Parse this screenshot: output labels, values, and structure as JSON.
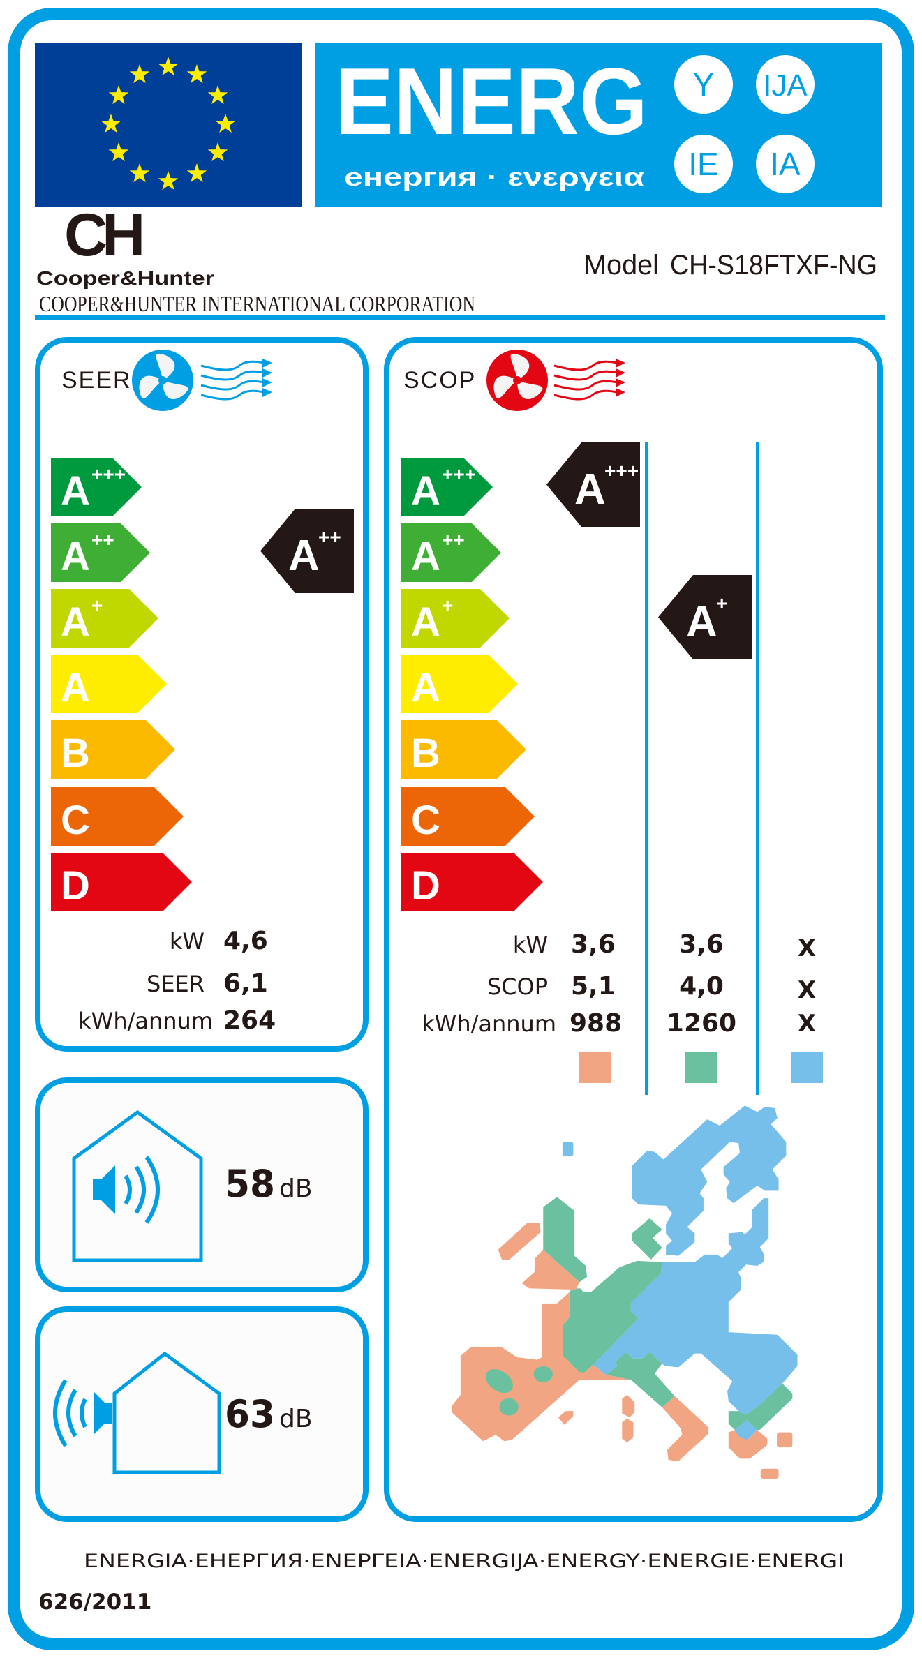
{
  "header": {
    "energy_title": "ENERG",
    "subtitle": "енергия · ενεργεια",
    "suffixes": [
      "Y",
      "IJA",
      "IE",
      "IA"
    ],
    "flag_color": "#003f97",
    "accent": "#009fe3"
  },
  "brand": {
    "logo_letters": "CH",
    "logo_name": "Cooper&Hunter",
    "corporation": "COOPER&HUNTER INTERNATIONAL CORPORATION"
  },
  "model": {
    "label": "Model",
    "value": "CH-S18FTXF-NG"
  },
  "scale": [
    {
      "letter": "A",
      "sup": "+++",
      "color": "#009a3e"
    },
    {
      "letter": "A",
      "sup": "++",
      "color": "#3fae35"
    },
    {
      "letter": "A",
      "sup": "+",
      "color": "#c1d700"
    },
    {
      "letter": "A",
      "sup": "",
      "color": "#ffed00"
    },
    {
      "letter": "B",
      "sup": "",
      "color": "#fbba00"
    },
    {
      "letter": "C",
      "sup": "",
      "color": "#ec6608"
    },
    {
      "letter": "D",
      "sup": "",
      "color": "#e30613"
    }
  ],
  "cooling": {
    "title": "SEER",
    "icon": "fan-icon-blue",
    "rating": {
      "letter": "A",
      "sup": "++"
    },
    "rows": [
      {
        "label": "kW",
        "value": "4,6"
      },
      {
        "label": "SEER",
        "value": "6,1"
      },
      {
        "label": "kWh/annum",
        "value": "264"
      }
    ]
  },
  "heating": {
    "title": "SCOP",
    "icon": "fan-icon-red",
    "labels": [
      "kW",
      "SCOP",
      "kWh/annum"
    ],
    "columns": [
      {
        "zone_color": "#f2a582",
        "rating": {
          "letter": "A",
          "sup": "+++"
        },
        "values": [
          "3,6",
          "5,1",
          "988"
        ]
      },
      {
        "zone_color": "#6bc19f",
        "rating": {
          "letter": "A",
          "sup": "+"
        },
        "values": [
          "3,6",
          "4,0",
          "1260"
        ]
      },
      {
        "zone_color": "#75bfea",
        "rating": null,
        "values": [
          "X",
          "X",
          "X"
        ]
      }
    ]
  },
  "noise": {
    "indoor": {
      "value": "58",
      "unit": "dB"
    },
    "outdoor": {
      "value": "63",
      "unit": "dB"
    }
  },
  "footer": {
    "languages": "ENERGIA·ЕНЕРГИЯ·ΕΝΕΡΓΕΙΑ·ENERGIJA·ENERGY·ENERGIE·ENERGI",
    "regulation": "626/2011"
  }
}
